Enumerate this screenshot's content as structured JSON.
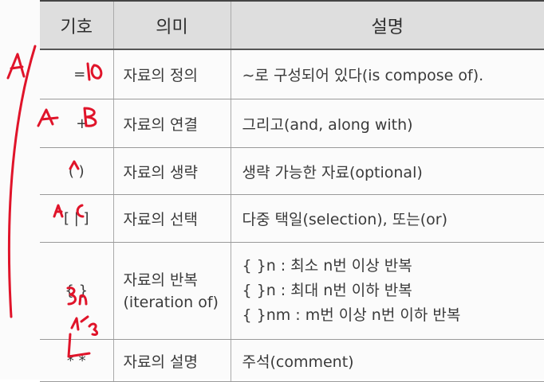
{
  "table": {
    "headers": [
      "기호",
      "의미",
      "설명"
    ],
    "rows": [
      {
        "symbol": "=",
        "meaning": "자료의 정의",
        "desc": "∼로 구성되어 있다(is compose of)."
      },
      {
        "symbol": "+",
        "meaning": "자료의 연결",
        "desc": "그리고(and, along with)"
      },
      {
        "symbol": "( )",
        "meaning": "자료의 생략",
        "desc": "생략 가능한 자료(optional)"
      },
      {
        "symbol": "[ | ]",
        "meaning": "자료의 선택",
        "desc": "다중 택일(selection), 또는(or)"
      },
      {
        "symbol": "{ }",
        "meaning": "자료의 반복",
        "meaning_sub": "(iteration of)",
        "desc_lines": [
          "{ }n : 최소 n번 이상 반복",
          "{ }n : 최대 n번 이하 반복",
          "{ }nm : m번 이상 n번 이하 반복"
        ]
      },
      {
        "symbol": "* *",
        "meaning": "자료의 설명",
        "desc": "주석(comment)"
      }
    ]
  },
  "handwriting": {
    "color": "#e0142a",
    "marks": [
      "A",
      "10",
      "A",
      "B",
      "A",
      "A|C",
      "3",
      "n",
      "4/s"
    ]
  }
}
